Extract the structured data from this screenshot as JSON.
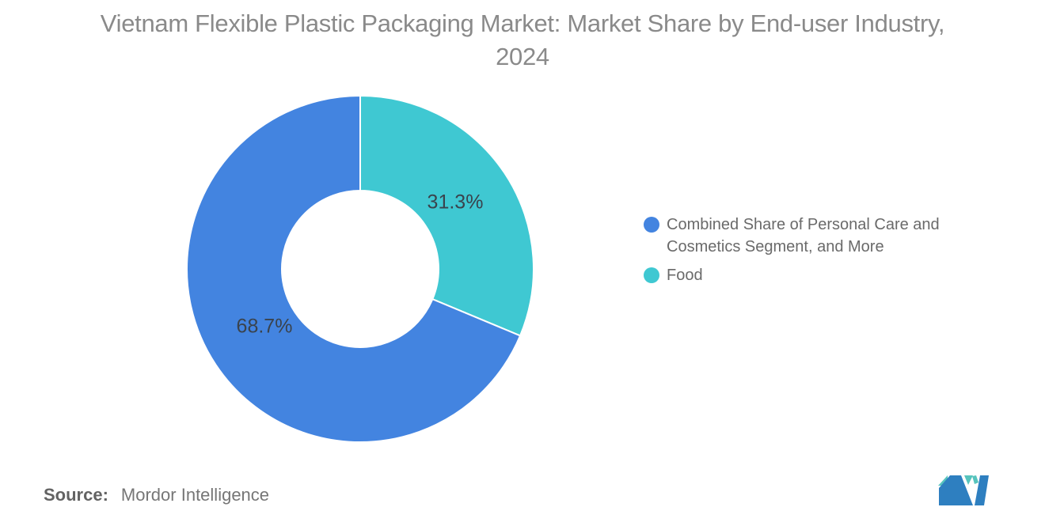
{
  "title": {
    "line1": "Vietnam Flexible Plastic Packaging Market: Market Share by End-user Industry,",
    "line2": "2024"
  },
  "chart_data": {
    "type": "pie",
    "subtype": "donut",
    "unit": "%",
    "start_angle_deg": 0,
    "direction": "clockwise",
    "legend_position": "right",
    "slices": [
      {
        "name": "Combined Share of Personal Care and Cosmetics Segment, and More",
        "value": 68.7,
        "label": "68.7%",
        "color": "#4384E0"
      },
      {
        "name": "Food",
        "value": 31.3,
        "label": "31.3%",
        "color": "#3FC8D2"
      }
    ]
  },
  "source": {
    "prefix": "Source:",
    "text": "Mordor Intelligence"
  },
  "logo": {
    "name": "mordor-intelligence-logo",
    "teal": "#57C4BD",
    "blue": "#2E7FC0"
  }
}
